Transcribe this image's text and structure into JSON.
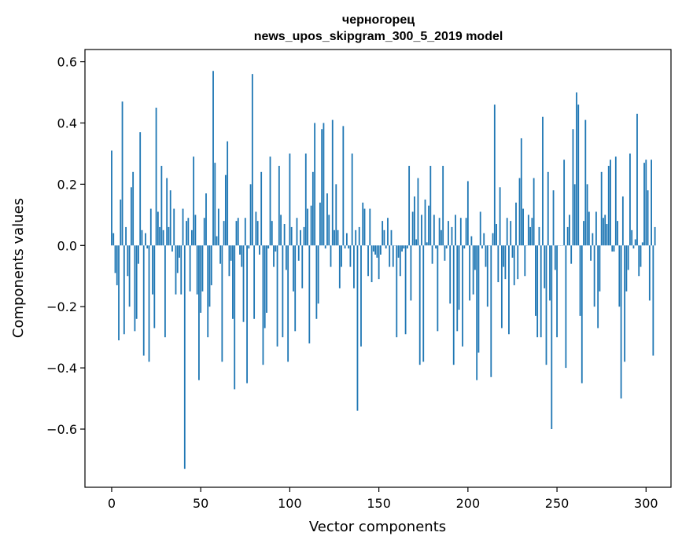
{
  "chart_data": {
    "type": "bar",
    "title_line1": "черногорец",
    "title_line2": "news_upos_skipgram_300_5_2019 model",
    "xlabel": "Vector components",
    "ylabel": "Components values",
    "xlim": [
      -15,
      314
    ],
    "ylim": [
      -0.79,
      0.64
    ],
    "xticks": [
      0,
      50,
      100,
      150,
      200,
      250,
      300
    ],
    "yticks": [
      -0.6,
      -0.4,
      -0.2,
      0.0,
      0.2,
      0.4,
      0.6
    ],
    "ytick_labels": [
      "−0.6",
      "−0.4",
      "−0.2",
      "0.0",
      "0.2",
      "0.4",
      "0.6"
    ],
    "grid": false,
    "bar_color": "#1f77b4",
    "values": [
      0.31,
      0.04,
      -0.09,
      -0.13,
      -0.31,
      0.15,
      0.47,
      -0.29,
      0.06,
      -0.1,
      -0.2,
      0.19,
      0.24,
      -0.28,
      -0.24,
      -0.06,
      0.37,
      0.05,
      -0.36,
      0.04,
      -0.01,
      -0.38,
      0.12,
      -0.16,
      -0.27,
      0.45,
      0.11,
      0.06,
      0.26,
      0.05,
      -0.3,
      0.22,
      0.06,
      0.18,
      -0.02,
      0.12,
      -0.16,
      -0.09,
      -0.04,
      -0.16,
      0.12,
      -0.73,
      0.08,
      0.09,
      -0.15,
      0.05,
      0.29,
      0.1,
      -0.16,
      -0.44,
      -0.22,
      -0.15,
      0.09,
      0.17,
      -0.3,
      -0.2,
      -0.13,
      0.57,
      0.27,
      0.03,
      0.12,
      -0.06,
      -0.38,
      0.08,
      0.23,
      0.34,
      -0.1,
      -0.05,
      -0.24,
      -0.47,
      0.08,
      0.09,
      -0.03,
      -0.07,
      -0.25,
      0.09,
      -0.45,
      -0.01,
      0.2,
      0.56,
      -0.24,
      0.11,
      0.08,
      -0.03,
      0.24,
      -0.39,
      -0.27,
      -0.22,
      -0.01,
      0.29,
      0.08,
      -0.07,
      -0.02,
      -0.33,
      0.26,
      0.1,
      -0.3,
      0.07,
      -0.08,
      -0.38,
      0.3,
      0.06,
      -0.15,
      -0.28,
      0.09,
      -0.05,
      0.05,
      -0.14,
      0.06,
      0.3,
      0.12,
      -0.32,
      0.13,
      0.24,
      0.4,
      -0.24,
      -0.19,
      0.14,
      0.38,
      0.4,
      -0.01,
      0.17,
      0.1,
      -0.07,
      0.41,
      0.05,
      0.2,
      0.05,
      -0.14,
      -0.07,
      0.39,
      -0.01,
      0.04,
      -0.01,
      -0.07,
      0.3,
      -0.14,
      0.05,
      -0.54,
      0.06,
      -0.33,
      0.14,
      0.12,
      0.0,
      -0.1,
      0.12,
      -0.12,
      -0.02,
      -0.03,
      -0.04,
      -0.11,
      -0.03,
      0.08,
      0.05,
      -0.01,
      0.09,
      -0.07,
      0.05,
      -0.07,
      0.0,
      -0.3,
      -0.04,
      -0.1,
      -0.02,
      -0.01,
      -0.29,
      -0.01,
      0.26,
      -0.18,
      0.11,
      0.16,
      0.02,
      0.22,
      -0.39,
      0.1,
      -0.38,
      0.15,
      0.01,
      0.13,
      0.26,
      -0.06,
      0.1,
      -0.01,
      -0.28,
      0.09,
      0.05,
      0.26,
      -0.05,
      -0.01,
      0.08,
      -0.19,
      0.06,
      -0.39,
      0.1,
      -0.28,
      -0.21,
      0.09,
      -0.33,
      -0.01,
      0.09,
      0.21,
      -0.18,
      0.03,
      -0.16,
      -0.08,
      -0.44,
      -0.35,
      0.11,
      -0.01,
      0.04,
      -0.07,
      -0.2,
      0.0,
      -0.43,
      0.04,
      0.46,
      0.07,
      -0.12,
      0.19,
      -0.27,
      -0.07,
      -0.11,
      0.09,
      -0.29,
      0.08,
      -0.04,
      -0.13,
      0.14,
      -0.11,
      0.22,
      0.35,
      0.12,
      -0.1,
      0.0,
      0.1,
      0.06,
      0.09,
      0.22,
      -0.23,
      -0.3,
      0.06,
      -0.3,
      0.42,
      -0.14,
      -0.39,
      0.24,
      -0.18,
      -0.6,
      0.18,
      -0.08,
      -0.3,
      0.0,
      0.0,
      0.0,
      0.28,
      -0.4,
      0.06,
      0.1,
      -0.06,
      0.38,
      0.2,
      0.5,
      0.46,
      -0.23,
      -0.45,
      0.08,
      0.41,
      0.2,
      0.11,
      -0.05,
      0.04,
      -0.2,
      0.11,
      -0.27,
      -0.15,
      0.24,
      0.09,
      0.1,
      0.07,
      0.26,
      0.28,
      -0.02,
      -0.02,
      0.29,
      0.08,
      -0.2,
      -0.5,
      0.16,
      -0.38,
      -0.15,
      -0.08,
      0.3,
      0.05,
      -0.01,
      0.02,
      0.43,
      -0.1,
      -0.07,
      0.01,
      0.27,
      0.28,
      0.18,
      -0.18,
      0.28,
      -0.36,
      0.06
    ]
  }
}
